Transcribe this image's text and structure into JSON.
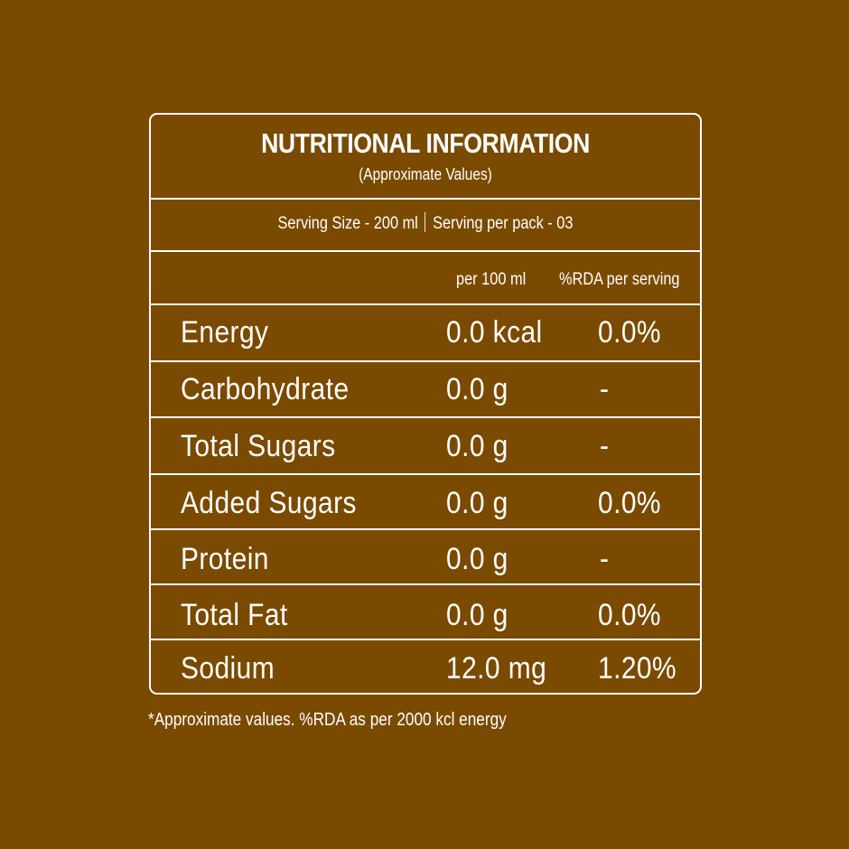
{
  "label": {
    "title": "NUTRITIONAL INFORMATION",
    "subtitle": "(Approximate Values)",
    "serving_size": "Serving Size - 200 ml",
    "servings_per_pack": "Serving per pack - 03",
    "columns": {
      "per_100ml": "per 100 ml",
      "rda": "%RDA per serving"
    },
    "rows": [
      {
        "name": "Energy",
        "per_100ml": "0.0 kcal",
        "rda": "0.0%"
      },
      {
        "name": "Carbohydrate",
        "per_100ml": "0.0 g",
        "rda": "-"
      },
      {
        "name": "Total Sugars",
        "per_100ml": "0.0 g",
        "rda": "-"
      },
      {
        "name": "Added Sugars",
        "per_100ml": "0.0 g",
        "rda": "0.0%"
      },
      {
        "name": "Protein",
        "per_100ml": "0.0 g",
        "rda": "-"
      },
      {
        "name": "Total Fat",
        "per_100ml": "0.0 g",
        "rda": "0.0%"
      },
      {
        "name": "Sodium",
        "per_100ml": "12.0 mg",
        "rda": "1.20%"
      }
    ],
    "footnote": "*Approximate values. %RDA as per 2000 kcl energy"
  },
  "colors": {
    "background": "#7a4a00",
    "foreground": "#ffffff"
  }
}
